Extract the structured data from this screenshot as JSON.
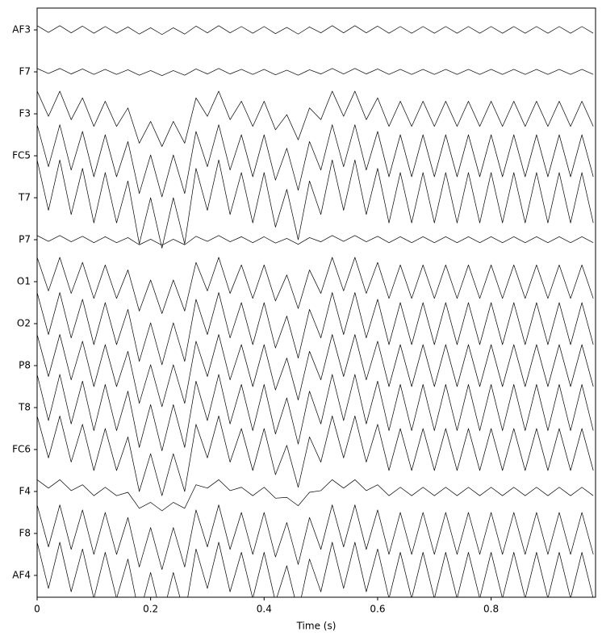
{
  "chart_data": {
    "type": "line",
    "xlabel": "Time (s)",
    "x": [
      0,
      0.02,
      0.04,
      0.06,
      0.08,
      0.1,
      0.12,
      0.14,
      0.16,
      0.18,
      0.2,
      0.22,
      0.24,
      0.26,
      0.28,
      0.3,
      0.32,
      0.34,
      0.36,
      0.38,
      0.4,
      0.42,
      0.44,
      0.46,
      0.48,
      0.5,
      0.52,
      0.54,
      0.56,
      0.58,
      0.6,
      0.62,
      0.64,
      0.66,
      0.68,
      0.7,
      0.72,
      0.74,
      0.76,
      0.78,
      0.8,
      0.82,
      0.84,
      0.86,
      0.88,
      0.9,
      0.92,
      0.94,
      0.96,
      0.98
    ],
    "xlim": [
      0,
      0.984
    ],
    "xticks": [
      0,
      0.2,
      0.4,
      0.6,
      0.8
    ],
    "ylim": [
      -0.52,
      13.52
    ],
    "color": "#000000",
    "series": [
      {
        "name": "AF3",
        "values": [
          0.1,
          -0.06,
          0.1,
          -0.07,
          0.09,
          -0.08,
          0.08,
          -0.08,
          0.07,
          -0.1,
          0.05,
          -0.11,
          0.05,
          -0.1,
          0.09,
          -0.07,
          0.1,
          -0.07,
          0.08,
          -0.08,
          0.08,
          -0.09,
          0.06,
          -0.1,
          0.07,
          -0.07,
          0.1,
          -0.07,
          0.1,
          -0.07,
          0.09,
          -0.08,
          0.08,
          -0.08,
          0.08,
          -0.08,
          0.08,
          -0.08,
          0.08,
          -0.08,
          0.08,
          -0.08,
          0.08,
          -0.08,
          0.08,
          -0.08,
          0.08,
          -0.08,
          0.08,
          -0.08
        ]
      },
      {
        "name": "F7",
        "values": [
          0.08,
          -0.04,
          0.08,
          -0.05,
          0.07,
          -0.06,
          0.06,
          -0.06,
          0.05,
          -0.08,
          0.03,
          -0.09,
          0.03,
          -0.08,
          0.07,
          -0.05,
          0.08,
          -0.05,
          0.06,
          -0.06,
          0.06,
          -0.07,
          0.04,
          -0.08,
          0.05,
          -0.05,
          0.08,
          -0.05,
          0.08,
          -0.05,
          0.07,
          -0.06,
          0.06,
          -0.06,
          0.06,
          -0.06,
          0.06,
          -0.06,
          0.06,
          -0.06,
          0.06,
          -0.06,
          0.06,
          -0.06,
          0.06,
          -0.06,
          0.06,
          -0.06,
          0.06,
          -0.06
        ]
      },
      {
        "name": "F3",
        "values": [
          0.54,
          -0.06,
          0.54,
          -0.14,
          0.38,
          -0.3,
          0.3,
          -0.3,
          0.14,
          -0.7,
          -0.18,
          -0.78,
          -0.18,
          -0.7,
          0.38,
          -0.06,
          0.54,
          -0.14,
          0.3,
          -0.3,
          0.3,
          -0.38,
          -0.02,
          -0.62,
          0.14,
          -0.14,
          0.54,
          -0.06,
          0.54,
          -0.14,
          0.38,
          -0.3,
          0.3,
          -0.3,
          0.3,
          -0.3,
          0.3,
          -0.3,
          0.3,
          -0.3,
          0.3,
          -0.3,
          0.3,
          -0.3,
          0.3,
          -0.3,
          0.3,
          -0.3,
          0.3,
          -0.3
        ]
      },
      {
        "name": "FC5",
        "values": [
          0.74,
          -0.26,
          0.74,
          -0.34,
          0.58,
          -0.5,
          0.5,
          -0.5,
          0.34,
          -0.9,
          0.02,
          -0.98,
          0.02,
          -0.9,
          0.58,
          -0.26,
          0.74,
          -0.34,
          0.5,
          -0.5,
          0.5,
          -0.58,
          0.18,
          -0.82,
          0.34,
          -0.34,
          0.74,
          -0.26,
          0.74,
          -0.34,
          0.58,
          -0.5,
          0.5,
          -0.5,
          0.5,
          -0.5,
          0.5,
          -0.5,
          0.5,
          -0.5,
          0.5,
          -0.5,
          0.5,
          -0.5,
          0.5,
          -0.5,
          0.5,
          -0.5,
          0.5,
          -0.5
        ]
      },
      {
        "name": "T7",
        "values": [
          0.9,
          -0.3,
          0.9,
          -0.4,
          0.7,
          -0.6,
          0.6,
          -0.6,
          0.4,
          -1.1,
          0,
          -1.2,
          0,
          -1.1,
          0.7,
          -0.3,
          0.9,
          -0.4,
          0.6,
          -0.6,
          0.6,
          -0.7,
          0.2,
          -1,
          0.4,
          -0.4,
          0.9,
          -0.3,
          0.9,
          -0.4,
          0.7,
          -0.6,
          0.6,
          -0.6,
          0.6,
          -0.6,
          0.6,
          -0.6,
          0.6,
          -0.6,
          0.6,
          -0.6,
          0.6,
          -0.6,
          0.6,
          -0.6,
          0.6,
          -0.6,
          0.6,
          -0.6
        ]
      },
      {
        "name": "P7",
        "values": [
          0.1,
          -0.04,
          0.1,
          -0.05,
          0.08,
          -0.07,
          0.07,
          -0.07,
          0.05,
          -0.12,
          0.01,
          -0.13,
          0.01,
          -0.12,
          0.08,
          -0.04,
          0.1,
          -0.05,
          0.07,
          -0.07,
          0.07,
          -0.08,
          0.03,
          -0.11,
          0.05,
          -0.05,
          0.1,
          -0.04,
          0.1,
          -0.05,
          0.08,
          -0.07,
          0.07,
          -0.07,
          0.07,
          -0.07,
          0.07,
          -0.07,
          0.07,
          -0.07,
          0.07,
          -0.07,
          0.07,
          -0.07,
          0.07,
          -0.07,
          0.07,
          -0.07,
          0.07,
          -0.07
        ]
      },
      {
        "name": "O1",
        "values": [
          0.58,
          -0.22,
          0.58,
          -0.28,
          0.46,
          -0.4,
          0.4,
          -0.4,
          0.28,
          -0.7,
          0.04,
          -0.76,
          0.04,
          -0.7,
          0.46,
          -0.22,
          0.58,
          -0.28,
          0.4,
          -0.4,
          0.4,
          -0.46,
          0.16,
          -0.64,
          0.28,
          -0.28,
          0.58,
          -0.22,
          0.58,
          -0.28,
          0.46,
          -0.4,
          0.4,
          -0.4,
          0.4,
          -0.4,
          0.4,
          -0.4,
          0.4,
          -0.4,
          0.4,
          -0.4,
          0.4,
          -0.4,
          0.4,
          -0.4,
          0.4,
          -0.4,
          0.4,
          -0.4
        ]
      },
      {
        "name": "O2",
        "values": [
          0.74,
          -0.26,
          0.74,
          -0.34,
          0.58,
          -0.5,
          0.5,
          -0.5,
          0.34,
          -0.9,
          0.02,
          -0.98,
          0.02,
          -0.9,
          0.58,
          -0.26,
          0.74,
          -0.34,
          0.5,
          -0.5,
          0.5,
          -0.58,
          0.18,
          -0.82,
          0.34,
          -0.34,
          0.74,
          -0.26,
          0.74,
          -0.34,
          0.58,
          -0.5,
          0.5,
          -0.5,
          0.5,
          -0.5,
          0.5,
          -0.5,
          0.5,
          -0.5,
          0.5,
          -0.5,
          0.5,
          -0.5,
          0.5,
          -0.5,
          0.5,
          -0.5,
          0.5,
          -0.5
        ]
      },
      {
        "name": "P8",
        "values": [
          0.74,
          -0.26,
          0.74,
          -0.34,
          0.58,
          -0.5,
          0.5,
          -0.5,
          0.34,
          -0.9,
          0.02,
          -0.98,
          0.02,
          -0.9,
          0.58,
          -0.26,
          0.74,
          -0.34,
          0.5,
          -0.5,
          0.5,
          -0.58,
          0.18,
          -0.82,
          0.34,
          -0.34,
          0.74,
          -0.26,
          0.74,
          -0.34,
          0.58,
          -0.5,
          0.5,
          -0.5,
          0.5,
          -0.5,
          0.5,
          -0.5,
          0.5,
          -0.5,
          0.5,
          -0.5,
          0.5,
          -0.5,
          0.5,
          -0.5,
          0.5,
          -0.5,
          0.5,
          -0.5
        ]
      },
      {
        "name": "T8",
        "values": [
          0.79,
          -0.31,
          0.79,
          -0.39,
          0.63,
          -0.55,
          0.55,
          -0.55,
          0.39,
          -0.95,
          0.07,
          -1.03,
          0.07,
          -0.95,
          0.63,
          -0.31,
          0.79,
          -0.39,
          0.55,
          -0.55,
          0.55,
          -0.63,
          0.23,
          -0.87,
          0.39,
          -0.39,
          0.79,
          -0.31,
          0.79,
          -0.39,
          0.63,
          -0.55,
          0.55,
          -0.55,
          0.55,
          -0.55,
          0.55,
          -0.55,
          0.55,
          -0.55,
          0.55,
          -0.55,
          0.55,
          -0.55,
          0.55,
          -0.55,
          0.55,
          -0.55,
          0.55,
          -0.55
        ]
      },
      {
        "name": "FC6",
        "values": [
          0.8,
          -0.2,
          0.8,
          -0.3,
          0.6,
          -0.5,
          0.5,
          -0.5,
          0.3,
          -1,
          -0.1,
          -1.1,
          -0.1,
          -1,
          0.6,
          -0.2,
          0.8,
          -0.3,
          0.5,
          -0.5,
          0.5,
          -0.6,
          0.1,
          -0.9,
          0.3,
          -0.3,
          0.8,
          -0.2,
          0.8,
          -0.3,
          0.6,
          -0.5,
          0.5,
          -0.5,
          0.5,
          -0.5,
          0.5,
          -0.5,
          0.5,
          -0.5,
          0.5,
          -0.5,
          0.5,
          -0.5,
          0.5,
          -0.5,
          0.5,
          -0.5,
          0.5,
          -0.5
        ]
      },
      {
        "name": "F4",
        "values": [
          0.28,
          0.08,
          0.28,
          0.02,
          0.16,
          -0.1,
          0.1,
          -0.1,
          -0.02,
          -0.4,
          -0.26,
          -0.46,
          -0.26,
          -0.4,
          0.16,
          0.08,
          0.28,
          0.02,
          0.1,
          -0.1,
          0.1,
          -0.16,
          -0.14,
          -0.34,
          -0.02,
          0.02,
          0.28,
          0.08,
          0.28,
          0.02,
          0.16,
          -0.1,
          0.1,
          -0.1,
          0.1,
          -0.1,
          0.1,
          -0.1,
          0.1,
          -0.1,
          0.1,
          -0.1,
          0.1,
          -0.1,
          0.1,
          -0.1,
          0.1,
          -0.1,
          0.1,
          -0.1
        ]
      },
      {
        "name": "F8",
        "values": [
          0.68,
          -0.32,
          0.68,
          -0.38,
          0.56,
          -0.5,
          0.5,
          -0.5,
          0.38,
          -0.8,
          0.14,
          -0.86,
          0.14,
          -0.8,
          0.56,
          -0.32,
          0.68,
          -0.38,
          0.5,
          -0.5,
          0.5,
          -0.56,
          0.26,
          -0.74,
          0.38,
          -0.38,
          0.68,
          -0.32,
          0.68,
          -0.38,
          0.56,
          -0.5,
          0.5,
          -0.5,
          0.5,
          -0.5,
          0.5,
          -0.5,
          0.5,
          -0.5,
          0.5,
          -0.5,
          0.5,
          -0.5,
          0.5,
          -0.5,
          0.5,
          -0.5,
          0.5,
          -0.5
        ]
      },
      {
        "name": "AF4",
        "values": [
          0.79,
          -0.31,
          0.79,
          -0.39,
          0.63,
          -0.55,
          0.55,
          -0.55,
          0.39,
          -0.95,
          0.07,
          -1.03,
          0.07,
          -0.95,
          0.63,
          -0.31,
          0.79,
          -0.39,
          0.55,
          -0.55,
          0.55,
          -0.63,
          0.23,
          -0.87,
          0.39,
          -0.39,
          0.79,
          -0.31,
          0.79,
          -0.39,
          0.63,
          -0.55,
          0.55,
          -0.55,
          0.55,
          -0.55,
          0.55,
          -0.55,
          0.55,
          -0.55,
          0.55,
          -0.55,
          0.55,
          -0.55,
          0.55,
          -0.55,
          0.55,
          -0.55,
          0.55,
          -0.55
        ]
      }
    ]
  }
}
